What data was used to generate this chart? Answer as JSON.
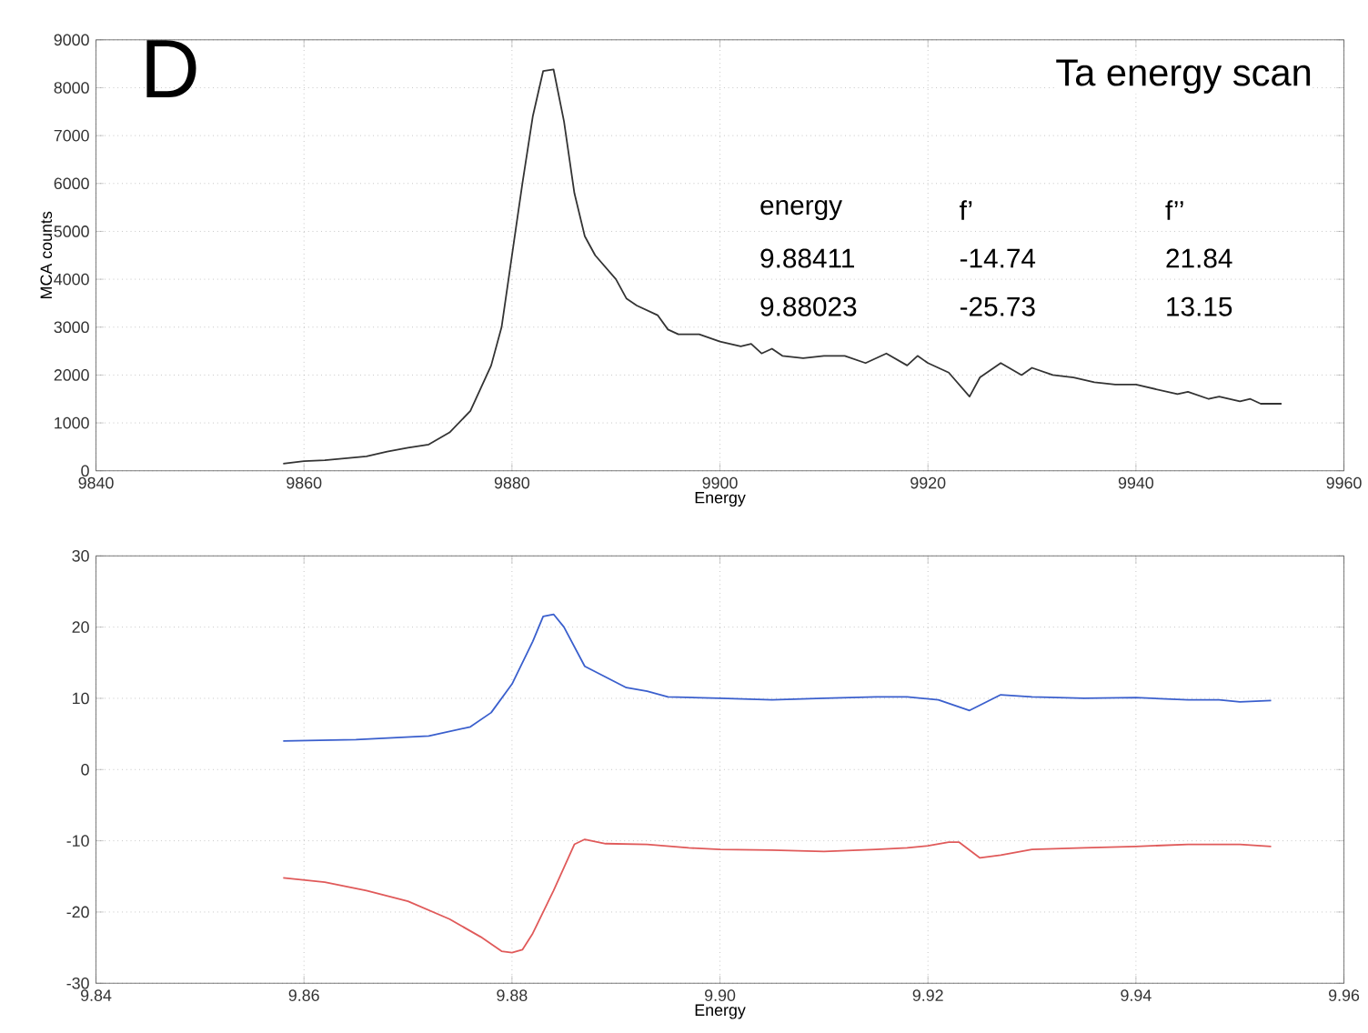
{
  "chart_data": [
    {
      "type": "line",
      "xlabel": "Energy",
      "ylabel": "MCA counts",
      "grid": true,
      "annotations": [
        "D",
        "Ta energy scan",
        "energy",
        "f’",
        "f’’",
        "9.88411",
        "-14.74",
        "21.84",
        "9.88023",
        "-25.73",
        "13.15"
      ],
      "xlim": [
        9840,
        9960
      ],
      "xticks": [
        9840,
        9860,
        9880,
        9900,
        9920,
        9940,
        9960
      ],
      "ylim": [
        0,
        9000
      ],
      "yticks": [
        0,
        1000,
        2000,
        3000,
        4000,
        5000,
        6000,
        7000,
        8000,
        9000
      ],
      "series": [
        {
          "color": "#333333",
          "x": [
            9858,
            9860,
            9862,
            9864,
            9866,
            9868,
            9870,
            9872,
            9874,
            9876,
            9878,
            9879,
            9880,
            9881,
            9882,
            9883,
            9884,
            9885,
            9886,
            9887,
            9888,
            9890,
            9891,
            9892,
            9894,
            9895,
            9896,
            9898,
            9900,
            9902,
            9903,
            9904,
            9905,
            9906,
            9908,
            9910,
            9912,
            9914,
            9916,
            9918,
            9919,
            9920,
            9922,
            9924,
            9925,
            9927,
            9929,
            9930,
            9932,
            9934,
            9936,
            9938,
            9940,
            9942,
            9944,
            9945,
            9947,
            9948,
            9950,
            9951,
            9952,
            9954
          ],
          "values": [
            150,
            200,
            220,
            260,
            300,
            400,
            480,
            550,
            800,
            1250,
            2200,
            3000,
            4500,
            6000,
            7400,
            8350,
            8380,
            7300,
            5800,
            4900,
            4500,
            4000,
            3600,
            3450,
            3250,
            2950,
            2850,
            2850,
            2700,
            2600,
            2650,
            2450,
            2550,
            2400,
            2350,
            2400,
            2400,
            2250,
            2450,
            2200,
            2400,
            2250,
            2050,
            1550,
            1950,
            2250,
            2000,
            2150,
            2000,
            1950,
            1850,
            1800,
            1800,
            1700,
            1600,
            1650,
            1500,
            1550,
            1450,
            1500,
            1400,
            1400
          ]
        }
      ]
    },
    {
      "type": "line",
      "xlabel": "Energy",
      "grid": true,
      "xlim": [
        9.84,
        9.96
      ],
      "xticks": [
        9.84,
        9.86,
        9.88,
        {
          "value": 9.9,
          "label": "9.90"
        },
        9.92,
        9.94,
        9.96
      ],
      "ylim": [
        -30,
        30
      ],
      "yticks": [
        -30,
        -20,
        -10,
        0,
        10,
        20,
        30
      ],
      "series": [
        {
          "color": "#3a5fcd",
          "x": [
            9.858,
            9.865,
            9.872,
            9.876,
            9.878,
            9.88,
            9.882,
            9.883,
            9.884,
            9.885,
            9.887,
            9.889,
            9.891,
            9.893,
            9.895,
            9.9,
            9.905,
            9.91,
            9.915,
            9.918,
            9.921,
            9.924,
            9.927,
            9.93,
            9.935,
            9.94,
            9.945,
            9.948,
            9.95,
            9.953
          ],
          "values": [
            4,
            4.2,
            4.7,
            6,
            8,
            12,
            18,
            21.5,
            21.8,
            20,
            14.5,
            13,
            11.5,
            11,
            10.2,
            10,
            9.8,
            10,
            10.2,
            10.2,
            9.8,
            8.3,
            10.5,
            10.2,
            10,
            10.1,
            9.8,
            9.8,
            9.5,
            9.7
          ]
        },
        {
          "color": "#e05a5a",
          "x": [
            9.858,
            9.862,
            9.866,
            9.87,
            9.874,
            9.877,
            9.879,
            9.88,
            9.881,
            9.882,
            9.884,
            9.886,
            9.887,
            9.889,
            9.893,
            9.897,
            9.9,
            9.905,
            9.91,
            9.915,
            9.918,
            9.92,
            9.922,
            9.923,
            9.925,
            9.927,
            9.93,
            9.935,
            9.94,
            9.945,
            9.95,
            9.953
          ],
          "values": [
            -15.2,
            -15.8,
            -17,
            -18.5,
            -21,
            -23.5,
            -25.5,
            -25.7,
            -25.3,
            -23,
            -17,
            -10.5,
            -9.8,
            -10.4,
            -10.5,
            -11,
            -11.2,
            -11.3,
            -11.5,
            -11.2,
            -11,
            -10.7,
            -10.2,
            -10.2,
            -12.4,
            -12,
            -11.2,
            -11,
            -10.8,
            -10.5,
            -10.5,
            -10.8
          ]
        }
      ]
    }
  ]
}
